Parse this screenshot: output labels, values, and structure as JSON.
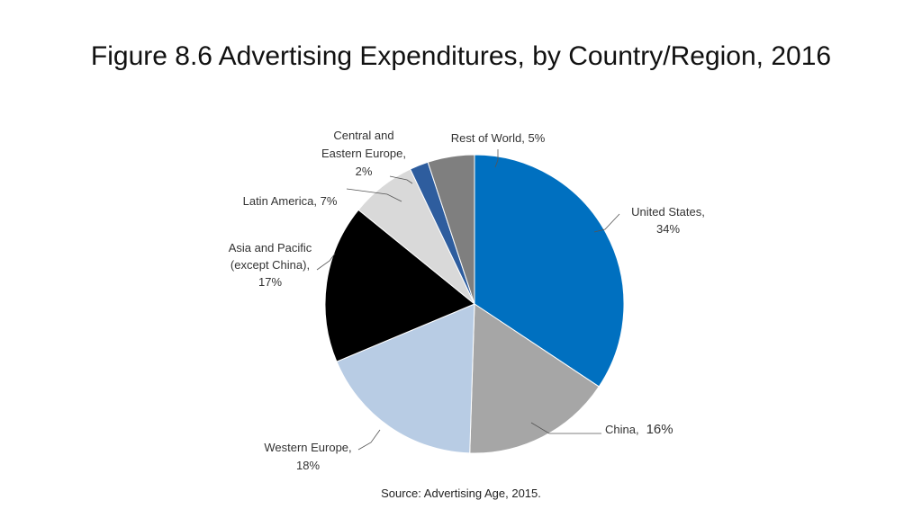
{
  "title": "Figure 8.6 Advertising Expenditures, by Country/Region, 2016",
  "source": "Source: Advertising Age, 2015.",
  "chart_data": {
    "type": "pie",
    "title": "Figure 8.6 Advertising Expenditures, by Country/Region, 2016",
    "start_angle_deg": 0,
    "direction": "clockwise",
    "slices": [
      {
        "label": "United States",
        "value": 34,
        "value_label": "34%",
        "color": "#0070c0"
      },
      {
        "label": "China",
        "value": 16,
        "value_label": "16%",
        "color": "#a6a6a6"
      },
      {
        "label": "Western Europe",
        "value": 18,
        "value_label": "18%",
        "color": "#b8cce4"
      },
      {
        "label": "Asia and Pacific (except China)",
        "value": 17,
        "value_label": "17%",
        "color": "#000000"
      },
      {
        "label": "Latin America",
        "value": 7,
        "value_label": "7%",
        "color": "#d9d9d9"
      },
      {
        "label": "Central and Eastern Europe",
        "value": 2,
        "value_label": "2%",
        "color": "#2e5d9e"
      },
      {
        "label": "Rest of World",
        "value": 5,
        "value_label": "5%",
        "color": "#7f7f7f"
      }
    ],
    "label_texts": {
      "us": [
        "United States,",
        "34%"
      ],
      "china": [
        "China,",
        "16%"
      ],
      "we": [
        "Western Europe,",
        "18%"
      ],
      "ap": [
        "Asia and Pacific",
        "(except China),",
        "17%"
      ],
      "la": [
        "Latin America, 7%"
      ],
      "cee": [
        "Central and",
        "Eastern Europe,",
        "2%"
      ],
      "row": [
        "Rest of World, 5%"
      ]
    }
  }
}
